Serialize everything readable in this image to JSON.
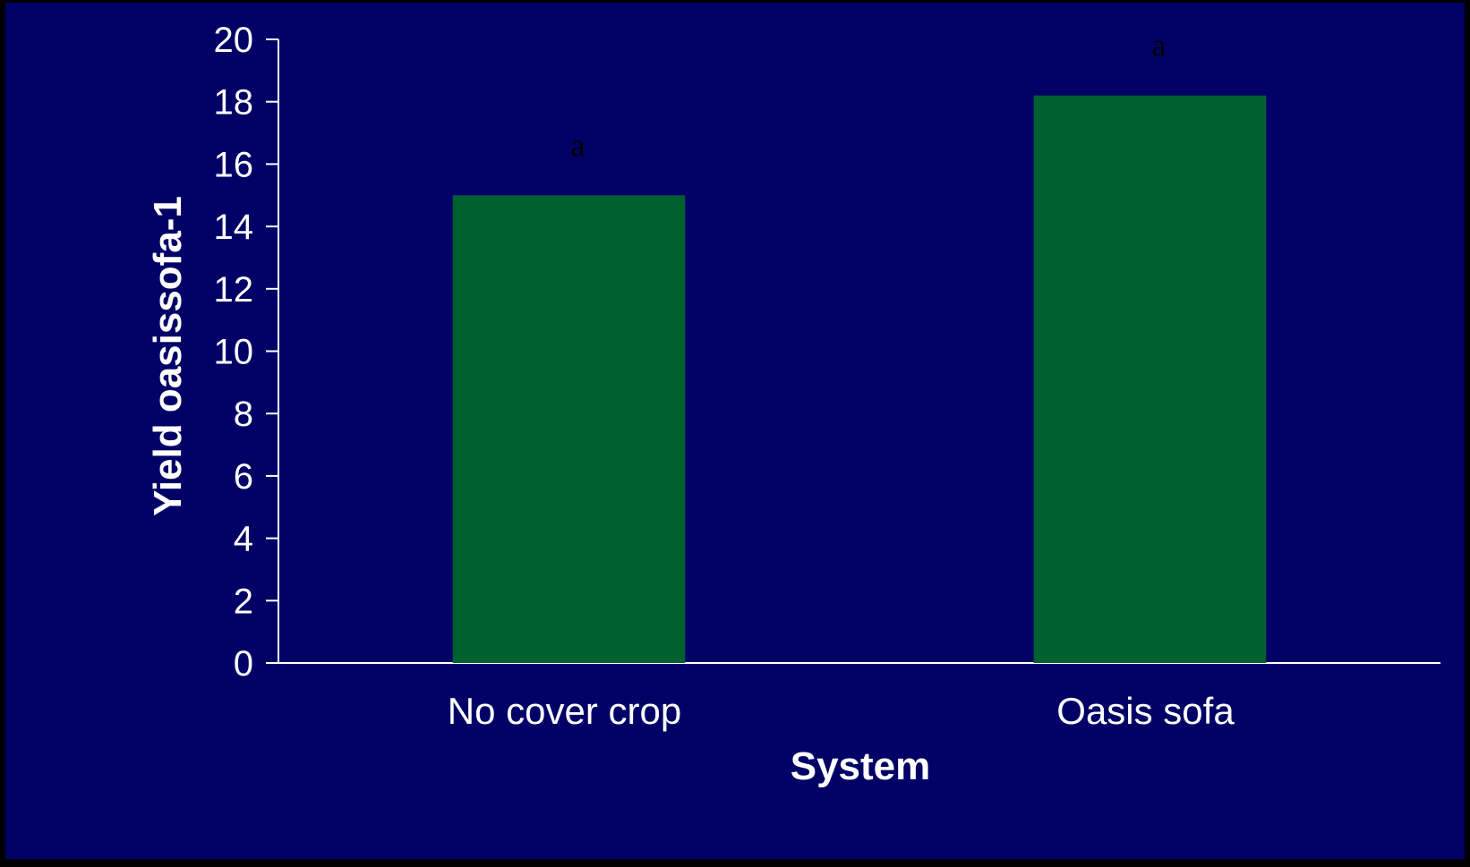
{
  "chart_data": {
    "type": "bar",
    "title": "",
    "xlabel": "System",
    "ylabel": "Yield oasissofa-1",
    "categories": [
      "No cover crop",
      "Oasis sofa"
    ],
    "values": [
      15.0,
      18.2
    ],
    "significance_letters": [
      "a",
      "a"
    ],
    "ylim": [
      0,
      20
    ],
    "yticks": [
      "0",
      "2",
      "4",
      "6",
      "8",
      "10",
      "12",
      "14",
      "16",
      "18",
      "20"
    ],
    "grid": false,
    "legend": "none",
    "colors": {
      "background": "#000066",
      "bar": "#006030",
      "axis": "#ffffff",
      "text": "#ffffff",
      "letters": "#000000"
    }
  }
}
